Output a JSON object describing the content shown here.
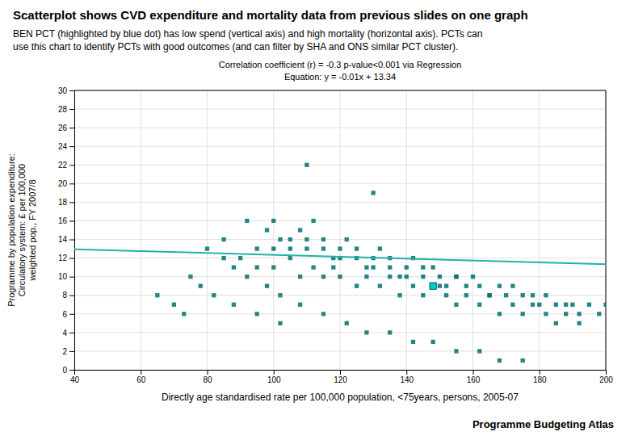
{
  "chart_data": {
    "type": "scatter",
    "title": "Scatterplot shows CVD expenditure and mortality data from previous slides on one graph",
    "subtitle": [
      "BEN PCT (highlighted by blue dot) has low spend (vertical axis) and high mortality (horizontal axis). PCTs can",
      "use this chart to identify PCTs with good outcomes (and can filter by SHA and ONS similar PCT cluster)."
    ],
    "annotations": [
      "Correlation coefficient (r) = -0.3    p-value<0.001 via Regression",
      "Equation: y = -0.01x + 13.34",
      "Programme Budgeting Atlas"
    ],
    "x_label": "Directly age standardised rate per 100,000 population, <75years, persons, 2005-07",
    "y_label": "Programme by population expenditure:\nCirculatory system: £ per 100,000\nweighted pop., FY 2007/8",
    "xlim": [
      40,
      200
    ],
    "ylim": [
      0,
      30
    ],
    "xticks": [
      40,
      60,
      80,
      100,
      120,
      140,
      160,
      180,
      200
    ],
    "yticks": [
      0,
      2,
      4,
      6,
      8,
      10,
      12,
      14,
      16,
      18,
      20,
      22,
      24,
      26,
      28,
      30
    ],
    "grid": true,
    "series": [
      {
        "type": "scatter",
        "marker": "square",
        "color": "#007070",
        "x": [
          85,
          92,
          95,
          98,
          100,
          102,
          105,
          108,
          110,
          112,
          115,
          118,
          120,
          122,
          125,
          128,
          130,
          132,
          135,
          138,
          140,
          142,
          145,
          148,
          150,
          152,
          155,
          158,
          160,
          162,
          165,
          168,
          170,
          172,
          175,
          178,
          180,
          182,
          185,
          188,
          190,
          192,
          195,
          198,
          200,
          90,
          95,
          100,
          105,
          108,
          112,
          115,
          118,
          120,
          125,
          128,
          132,
          135,
          138,
          142,
          145,
          148,
          152,
          155,
          158,
          162,
          165,
          168,
          172,
          175,
          178,
          182,
          185,
          188,
          192,
          80,
          85,
          88,
          92,
          98,
          102,
          108,
          115,
          122,
          128,
          135,
          142,
          148,
          155,
          162,
          168,
          175,
          100,
          105,
          110,
          115,
          120,
          125,
          130,
          135,
          140,
          145,
          150,
          155,
          75,
          78,
          82,
          88,
          95,
          102,
          65,
          70,
          73,
          110,
          130,
          148
        ],
        "values": [
          14,
          16,
          13,
          15,
          16,
          14,
          13,
          15,
          14,
          16,
          13,
          12,
          13,
          14,
          12,
          11,
          12,
          13,
          11,
          10,
          11,
          12,
          10,
          11,
          10,
          9,
          10,
          9,
          10,
          9,
          8,
          9,
          8,
          9,
          8,
          8,
          7,
          8,
          7,
          7,
          7,
          6,
          7,
          6,
          7,
          12,
          11,
          11,
          12,
          10,
          11,
          10,
          11,
          10,
          9,
          10,
          9,
          10,
          8,
          9,
          8,
          9,
          8,
          7,
          8,
          7,
          8,
          6,
          7,
          6,
          7,
          6,
          5,
          6,
          5,
          13,
          12,
          11,
          10,
          9,
          8,
          7,
          6,
          5,
          4,
          4,
          3,
          3,
          2,
          2,
          1,
          1,
          13,
          14,
          13,
          14,
          12,
          13,
          11,
          12,
          10,
          11,
          9,
          10,
          10,
          9,
          8,
          7,
          6,
          5,
          8,
          7,
          6,
          22,
          19,
          9
        ]
      },
      {
        "type": "scatter",
        "marker": "square",
        "color": "#00CCCC",
        "x": [
          148
        ],
        "values": [
          9
        ]
      },
      {
        "type": "line",
        "color": "#20B2AA",
        "x": [
          40,
          200
        ],
        "values": [
          12.94,
          11.34
        ]
      }
    ]
  }
}
